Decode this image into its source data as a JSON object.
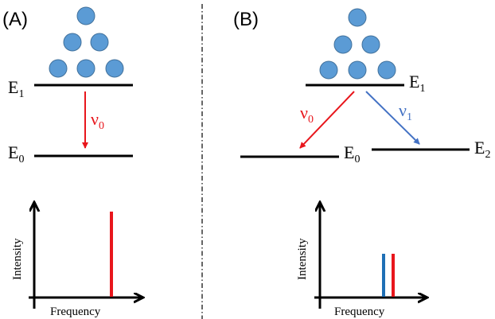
{
  "panels": {
    "a": {
      "label": "(A)",
      "upper_level": {
        "letter": "E",
        "sub": "1"
      },
      "lower_level": {
        "letter": "E",
        "sub": "0"
      },
      "transition": {
        "letter": "ν",
        "sub": "0",
        "color": "#e8161c"
      },
      "spectrum": {
        "ylabel": "Intensity",
        "xlabel": "Frequency"
      }
    },
    "b": {
      "label": "(B)",
      "upper_level": {
        "letter": "E",
        "sub": "1"
      },
      "lower_level_left": {
        "letter": "E",
        "sub": "0"
      },
      "lower_level_right": {
        "letter": "E",
        "sub": "2"
      },
      "transition_red": {
        "letter": "ν",
        "sub": "0",
        "color": "#e8161c"
      },
      "transition_blue": {
        "letter": "ν",
        "sub": "1",
        "color": "#4472c4"
      },
      "spectrum": {
        "ylabel": "Intensity",
        "xlabel": "Frequency"
      }
    }
  },
  "colors": {
    "particle_fill": "#5b9bd5",
    "particle_stroke": "#41719c",
    "red_line": "#e8161c",
    "blue_line": "#1f6fb5",
    "level_line": "#000000"
  }
}
